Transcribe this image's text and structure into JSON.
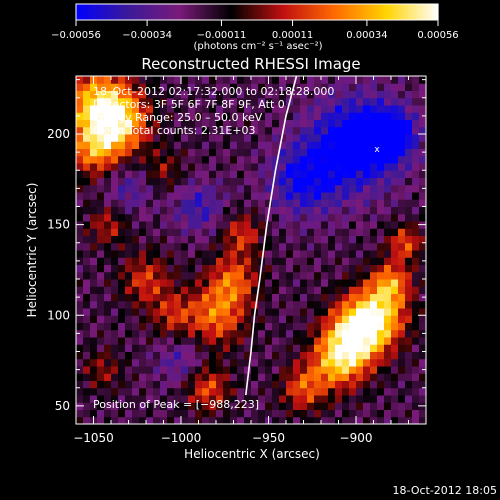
{
  "chart_data": {
    "type": "heatmap",
    "title": "Reconstructed RHESSI Image",
    "xlabel": "Heliocentric X (arcsec)",
    "ylabel": "Heliocentric Y (arcsec)",
    "xlim": [
      -1060,
      -860
    ],
    "ylim": [
      40,
      232
    ],
    "x_ticks": [
      -1050,
      -1000,
      -950,
      -900
    ],
    "x_tick_labels": [
      "−1050",
      "−1000",
      "−950",
      "−900"
    ],
    "y_ticks": [
      50,
      100,
      150,
      200
    ],
    "y_tick_labels": [
      "50",
      "100",
      "150",
      "200"
    ],
    "colorbar": {
      "range": [
        -0.00056,
        0.00056
      ],
      "ticks": [
        -0.00056,
        -0.00034,
        -0.00011,
        0.00011,
        0.00034,
        0.00056
      ],
      "tick_labels": [
        "−0.00056",
        "−0.00034",
        "−0.00011",
        "0.00011",
        "0.00034",
        "0.00056"
      ],
      "units_label": "(photons cm⁻² s⁻¹ asec⁻²)",
      "colors": [
        "#0000ff",
        "#3a1a9a",
        "#7a1a7a",
        "#000000",
        "#c01010",
        "#ff6a00",
        "#ffd400",
        "#ffffff"
      ]
    },
    "annotations": [
      "18–Oct–2012 02:17:32.000 to 02:18:28.000",
      "Detectors: 3F 5F 6F 7F 8F 9F, Att 0",
      "Energy Range: 25.0 – 50.0 keV",
      "Clean   Total counts: 2.31E+03"
    ],
    "peak_label": "Position of Peak = [−988,223]",
    "peak": [
      -988,
      223
    ],
    "limb_curve": {
      "x": [
        -963,
        -960,
        -958,
        -955,
        -951,
        -946,
        -940,
        -934
      ],
      "y": [
        56,
        80,
        100,
        120,
        150,
        180,
        210,
        232
      ]
    },
    "hot_blobs": [
      {
        "x": -1047,
        "y": 216,
        "s": 14,
        "v": 0.00056
      },
      {
        "x": -1035,
        "y": 205,
        "s": 12,
        "v": 0.00045
      },
      {
        "x": -1050,
        "y": 190,
        "s": 10,
        "v": 0.00035
      },
      {
        "x": -1042,
        "y": 150,
        "s": 8,
        "v": 0.00025
      },
      {
        "x": -1020,
        "y": 120,
        "s": 10,
        "v": 0.0003
      },
      {
        "x": -1005,
        "y": 100,
        "s": 9,
        "v": 0.00025
      },
      {
        "x": -980,
        "y": 100,
        "s": 12,
        "v": 0.0004
      },
      {
        "x": -970,
        "y": 120,
        "s": 10,
        "v": 0.00035
      },
      {
        "x": -965,
        "y": 145,
        "s": 8,
        "v": 0.0003
      },
      {
        "x": -900,
        "y": 90,
        "s": 12,
        "v": 0.00056
      },
      {
        "x": -888,
        "y": 100,
        "s": 12,
        "v": 0.00052
      },
      {
        "x": -910,
        "y": 75,
        "s": 11,
        "v": 0.0005
      },
      {
        "x": -880,
        "y": 118,
        "s": 8,
        "v": 0.0004
      },
      {
        "x": -872,
        "y": 140,
        "s": 7,
        "v": 0.00035
      },
      {
        "x": -930,
        "y": 60,
        "s": 9,
        "v": 0.00035
      },
      {
        "x": -1045,
        "y": 70,
        "s": 8,
        "v": 0.0002
      },
      {
        "x": -1010,
        "y": 180,
        "s": 8,
        "v": 0.0002
      },
      {
        "x": -985,
        "y": 60,
        "s": 9,
        "v": 0.00035
      }
    ],
    "cold_blobs": [
      {
        "x": -900,
        "y": 195,
        "s": 18,
        "v": -0.0005
      },
      {
        "x": -930,
        "y": 175,
        "s": 14,
        "v": -0.00035
      },
      {
        "x": -880,
        "y": 200,
        "s": 10,
        "v": -0.0004
      },
      {
        "x": -990,
        "y": 160,
        "s": 10,
        "v": -0.00025
      },
      {
        "x": -1000,
        "y": 75,
        "s": 10,
        "v": -0.0002
      },
      {
        "x": -1030,
        "y": 170,
        "s": 10,
        "v": -0.0002
      }
    ],
    "baseline": -0.00017
  },
  "footer": {
    "timestamp": "18-Oct-2012 18:05"
  }
}
